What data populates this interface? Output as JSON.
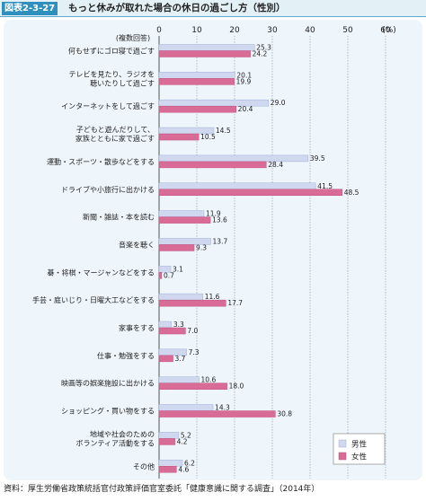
{
  "header": {
    "figure_label": "図表2-3-27",
    "title": "もっと休みが取れた場合の休日の過ごし方（性別）"
  },
  "source": "資料：厚生労働省政策統括官付政策評価官室委託「健康意識に関する調査」（2014年）",
  "colors": {
    "male": "#cfd8ee",
    "female": "#d96b97",
    "grid": "#9aa3ad",
    "panel": "#eef5fb"
  },
  "chart_data": {
    "type": "bar",
    "orientation": "horizontal",
    "note": "(複数回答)",
    "x_ticks": [
      "0",
      "10",
      "20",
      "30",
      "40",
      "50",
      "60"
    ],
    "unit": "(%)",
    "xlim": [
      0,
      60
    ],
    "grid": true,
    "legend_position": "bottom-right",
    "categories": [
      [
        "何もせずにゴロ寝で過ごす"
      ],
      [
        "テレビを見たり、ラジオを",
        "聴いたりして過ごす"
      ],
      [
        "インターネットをして過ごす"
      ],
      [
        "子どもと遊んだりして、",
        "家族とともに家で過ごす"
      ],
      [
        "運動・スポーツ・散歩などをする"
      ],
      [
        "ドライブや小旅行に出かける"
      ],
      [
        "新聞・雑誌・本を読む"
      ],
      [
        "音楽を聴く"
      ],
      [
        "碁・将棋・マージャンなどをする"
      ],
      [
        "手芸・庭いじり・日曜大工などをする"
      ],
      [
        "家事をする"
      ],
      [
        "仕事・勉強をする"
      ],
      [
        "映画等の娯楽施設に出かける"
      ],
      [
        "ショッピング・買い物をする"
      ],
      [
        "地域や社会のための",
        "ボランティア活動をする"
      ],
      [
        "その他"
      ]
    ],
    "series": [
      {
        "name": "男性",
        "values": [
          25.3,
          20.1,
          29.0,
          14.5,
          39.5,
          41.5,
          11.9,
          13.7,
          3.1,
          11.6,
          3.3,
          7.3,
          10.6,
          14.3,
          5.2,
          6.2
        ],
        "labels": [
          "25.3",
          "20.1",
          "29.0",
          "14.5",
          "39.5",
          "41.5",
          "11.9",
          "13.7",
          "3.1",
          "11.6",
          "3.3",
          "7.3",
          "10.6",
          "14.3",
          "5.2",
          "6.2"
        ]
      },
      {
        "name": "女性",
        "values": [
          24.2,
          19.9,
          20.4,
          10.5,
          28.4,
          48.5,
          13.6,
          9.3,
          0.7,
          17.7,
          7.0,
          3.7,
          18.0,
          30.8,
          4.2,
          4.6
        ],
        "labels": [
          "24.2",
          "19.9",
          "20.4",
          "10.5",
          "28.4",
          "48.5",
          "13.6",
          "9.3",
          "0.7",
          "17.7",
          "7.0",
          "3.7",
          "18.0",
          "30.8",
          "4.2",
          "4.6"
        ]
      }
    ]
  }
}
